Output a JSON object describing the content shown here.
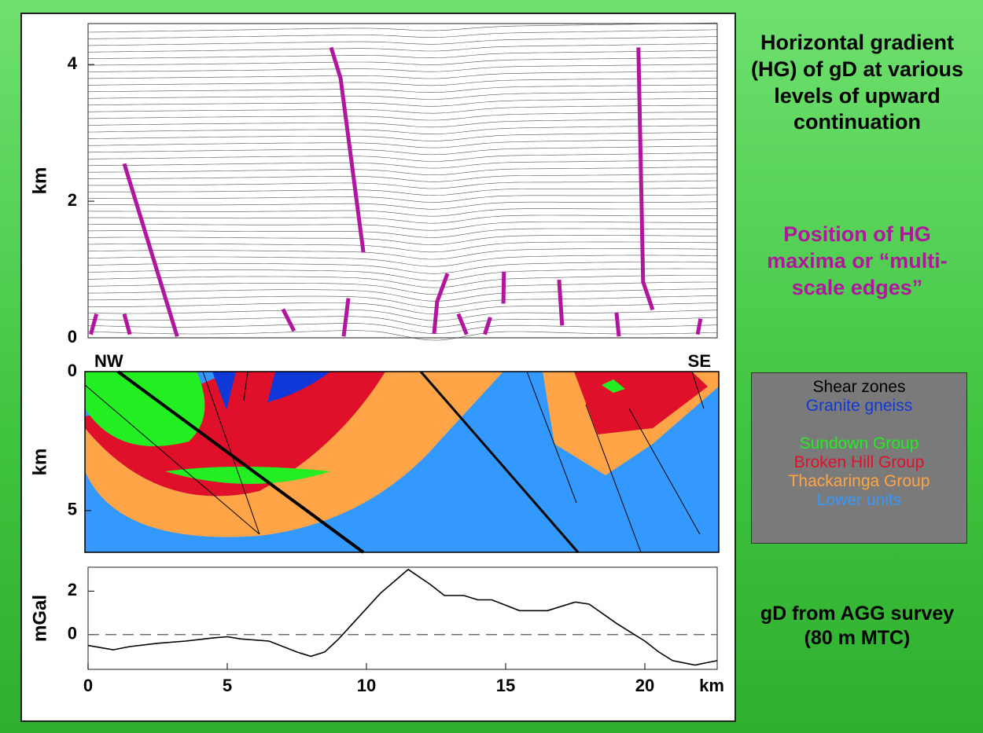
{
  "title": "Horizontal gradient (HG) of gD at various levels of upward continuation",
  "subtitle": "Position of HG maxima or “multi-scale edges”",
  "legend": [
    {
      "name": "Shear zones",
      "color": "#000000"
    },
    {
      "name": "Granite gneiss",
      "color": "#1038d8"
    },
    {
      "name": "Sundown Group",
      "color": "#22ee22"
    },
    {
      "name": "Broken Hill Group",
      "color": "#e0102a"
    },
    {
      "name": "Thackaringa Group",
      "color": "#ffa548"
    },
    {
      "name": "Lower units",
      "color": "#3399ff"
    }
  ],
  "caption": "gD from AGG survey (80 m MTC)",
  "chart_data": [
    {
      "type": "line",
      "ylabel": "km",
      "xlim": [
        0,
        22.6
      ],
      "ylim": [
        0,
        4.6
      ],
      "yticks": [
        0,
        2,
        4
      ],
      "series": [
        {
          "color": "#b0179e",
          "x": [
            1.3,
            3.2
          ],
          "values": [
            2.55,
            0.02
          ]
        },
        {
          "color": "#b0179e",
          "x": [
            8.73,
            9.07,
            9.89
          ],
          "values": [
            4.25,
            3.8,
            1.25
          ]
        },
        {
          "color": "#b0179e",
          "x": [
            19.77,
            19.94,
            20.28
          ],
          "values": [
            4.25,
            0.82,
            0.41
          ]
        },
        {
          "color": "#b0179e",
          "x": [
            12.43,
            12.54,
            12.91
          ],
          "values": [
            0.06,
            0.53,
            0.94
          ]
        },
        {
          "color": "#b0179e",
          "x": [
            9.35,
            9.18
          ],
          "values": [
            0.58,
            0.02
          ]
        },
        {
          "color": "#b0179e",
          "x": [
            14.94,
            14.92
          ],
          "values": [
            0.97,
            0.5
          ]
        },
        {
          "color": "#b0179e",
          "x": [
            16.92,
            17.03
          ],
          "values": [
            0.85,
            0.18
          ]
        },
        {
          "color": "#b0179e",
          "x": [
            18.98,
            19.07
          ],
          "values": [
            0.37,
            0.02
          ]
        },
        {
          "color": "#b0179e",
          "x": [
            7.0,
            7.4
          ],
          "values": [
            0.42,
            0.1
          ]
        },
        {
          "color": "#b0179e",
          "x": [
            0.3,
            0.1
          ],
          "values": [
            0.35,
            0.05
          ]
        },
        {
          "color": "#b0179e",
          "x": [
            1.3,
            1.5
          ],
          "values": [
            0.35,
            0.05
          ]
        },
        {
          "color": "#b0179e",
          "x": [
            13.3,
            13.6
          ],
          "values": [
            0.35,
            0.05
          ]
        },
        {
          "color": "#b0179e",
          "x": [
            14.45,
            14.25
          ],
          "values": [
            0.3,
            0.05
          ]
        },
        {
          "color": "#b0179e",
          "x": [
            22.0,
            21.9
          ],
          "values": [
            0.28,
            0.05
          ]
        }
      ]
    },
    {
      "type": "section",
      "ylabel": "km",
      "ylim": [
        0,
        6.5
      ],
      "yticks": [
        0,
        5
      ],
      "left_label": "NW",
      "right_label": "SE"
    },
    {
      "type": "line",
      "ylabel": "mGal",
      "xlabel": "km",
      "xlim": [
        0,
        22.6
      ],
      "ylim": [
        -1.6,
        3.1
      ],
      "yticks": [
        0,
        2
      ],
      "xticks": [
        0,
        5,
        10,
        15,
        20
      ],
      "zero_line": "dashed",
      "series": [
        {
          "color": "#000000",
          "x": [
            0,
            0.9,
            1.5,
            2.5,
            3.5,
            4.5,
            5,
            5.5,
            6.5,
            7.5,
            8,
            8.5,
            9,
            9.5,
            10.5,
            11.5,
            12.3,
            12.8,
            13.5,
            14,
            14.5,
            15.5,
            16.5,
            17.5,
            18,
            19,
            20,
            20.5,
            21,
            21.8,
            22.6
          ],
          "values": [
            -0.5,
            -0.7,
            -0.55,
            -0.4,
            -0.3,
            -0.15,
            -0.1,
            -0.2,
            -0.3,
            -0.8,
            -1.0,
            -0.8,
            -0.2,
            0.5,
            1.9,
            3.0,
            2.3,
            1.8,
            1.8,
            1.6,
            1.6,
            1.1,
            1.1,
            1.5,
            1.4,
            0.5,
            -0.3,
            -0.8,
            -1.2,
            -1.4,
            -1.2
          ]
        }
      ]
    }
  ]
}
